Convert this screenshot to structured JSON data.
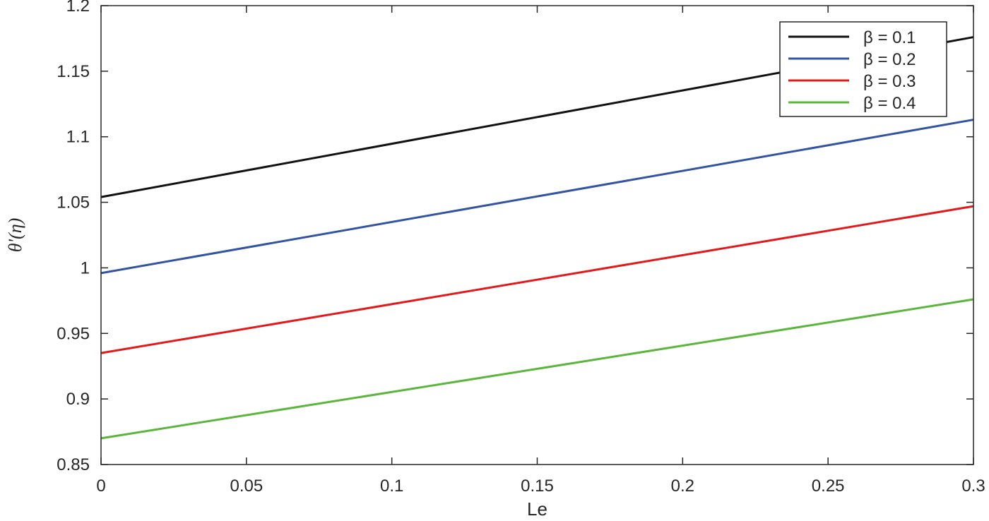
{
  "chart_data": {
    "type": "line",
    "xlabel": "Le",
    "ylabel": "θ'(η)",
    "xlim": [
      0,
      0.3
    ],
    "ylim": [
      0.85,
      1.2
    ],
    "x_ticks": [
      "0",
      "0.05",
      "0.1",
      "0.15",
      "0.2",
      "0.25",
      "0.3"
    ],
    "y_ticks": [
      "0.85",
      "0.9",
      "0.95",
      "1",
      "1.05",
      "1.1",
      "1.15",
      "1.2"
    ],
    "grid": false,
    "legend_position": "top-right",
    "x": [
      0,
      0.3
    ],
    "series": [
      {
        "name": "β = 0.1",
        "color": "#111111",
        "values": [
          1.054,
          1.176
        ]
      },
      {
        "name": "β = 0.2",
        "color": "#3353a3",
        "values": [
          0.996,
          1.113
        ]
      },
      {
        "name": "β = 0.3",
        "color": "#e31a1c",
        "values": [
          0.935,
          1.047
        ]
      },
      {
        "name": "β = 0.4",
        "color": "#5cb63e",
        "values": [
          0.87,
          0.976
        ]
      }
    ]
  }
}
